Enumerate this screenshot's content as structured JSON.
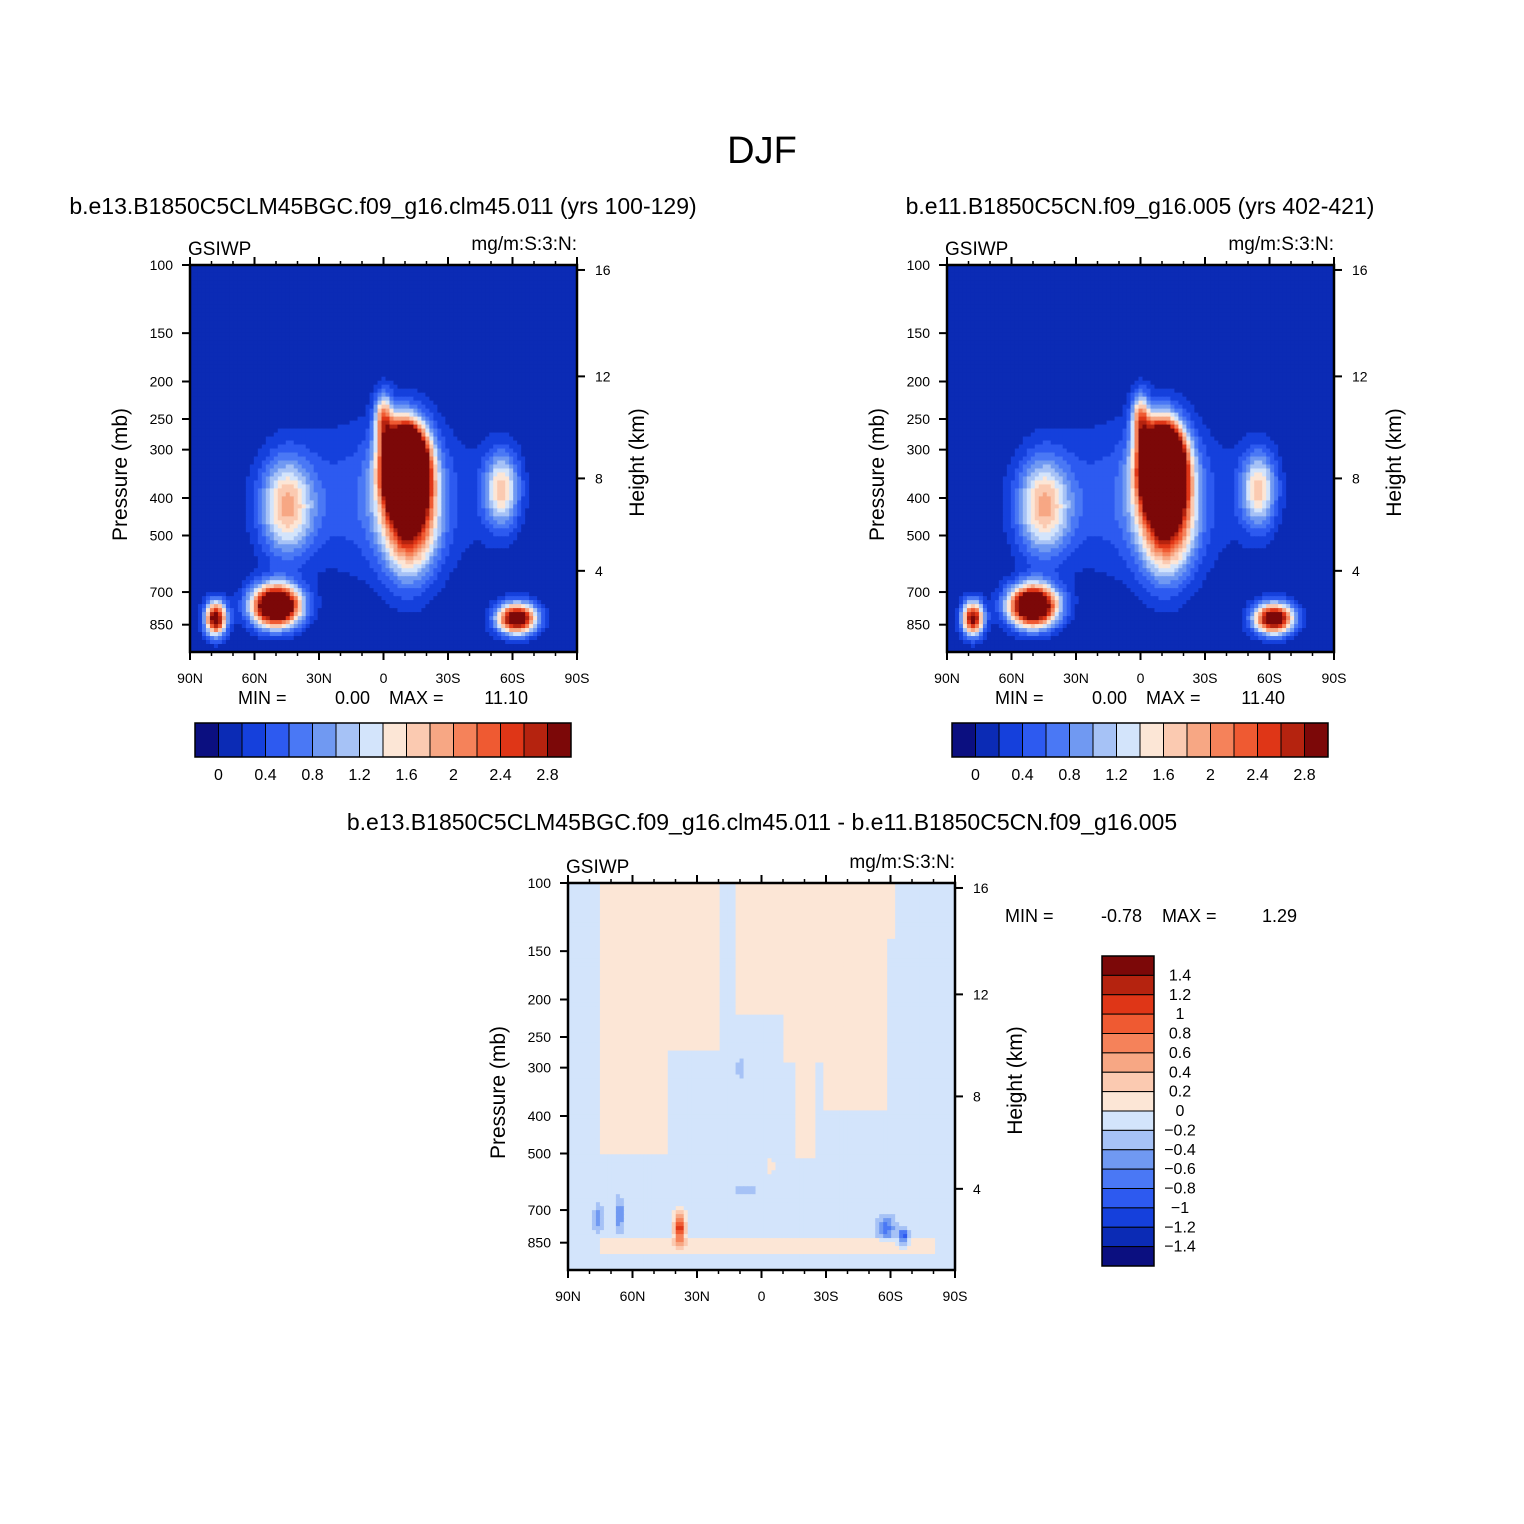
{
  "figure": {
    "title": "DJF",
    "colors": {
      "top_palette": [
        "#0b0f80",
        "#0b2bb5",
        "#1540dc",
        "#2d5af0",
        "#4a78f5",
        "#7099f2",
        "#a6c2f6",
        "#d3e4fb",
        "#fce6d6",
        "#fbcab1",
        "#f7a784",
        "#f5825a",
        "#ef5a32",
        "#df3617",
        "#b5230f",
        "#7c0808"
      ],
      "diff_palette": [
        "#0b0f80",
        "#0b2bb5",
        "#1540dc",
        "#2d5af0",
        "#4a78f5",
        "#7099f2",
        "#a6c2f6",
        "#d3e4fb",
        "#fce6d6",
        "#fbcab1",
        "#f7a784",
        "#f5825a",
        "#ef5a32",
        "#df3617",
        "#b5230f",
        "#7c0808"
      ]
    }
  },
  "chart_data": [
    {
      "type": "heatmap",
      "name": "panel-1",
      "title": "b.e13.B1850C5CLM45BGC.f09_g16.clm45.011 (yrs 100-129)",
      "left_label": "GSIWP",
      "right_label": "mg/m:S:3:N:",
      "ylabel": "Pressure (mb)",
      "ylabel_right": "Height (km)",
      "x_ticks": [
        "90N",
        "60N",
        "30N",
        "0",
        "30S",
        "60S",
        "90S"
      ],
      "y_ticks": [
        "100",
        "150",
        "200",
        "250",
        "300",
        "400",
        "500",
        "700",
        "850"
      ],
      "y_ticks_right": [
        "16",
        "12",
        "8",
        "4"
      ],
      "min_text": "MIN =",
      "min_value": "0.00",
      "max_text": "MAX =",
      "max_value": "11.10",
      "colorbar_labels": [
        "0",
        "0.4",
        "0.8",
        "1.2",
        "1.6",
        "2",
        "2.4",
        "2.8"
      ],
      "features": [
        {
          "lat": -10,
          "p": 330,
          "amp": 7.5,
          "wlat": 9,
          "wlogp": 0.22
        },
        {
          "lat": -12,
          "p": 430,
          "amp": 3.0,
          "wlat": 12,
          "wlogp": 0.35
        },
        {
          "lat": 0,
          "p": 250,
          "amp": 1.8,
          "wlat": 4,
          "wlogp": 0.15
        },
        {
          "lat": 45,
          "p": 420,
          "amp": 1.7,
          "wlat": 12,
          "wlogp": 0.28
        },
        {
          "lat": 50,
          "p": 760,
          "amp": 4.5,
          "wlat": 11,
          "wlogp": 0.12
        },
        {
          "lat": 78,
          "p": 820,
          "amp": 3.2,
          "wlat": 5,
          "wlogp": 0.1
        },
        {
          "lat": -55,
          "p": 380,
          "amp": 1.6,
          "wlat": 8,
          "wlogp": 0.22
        },
        {
          "lat": -62,
          "p": 820,
          "amp": 3.5,
          "wlat": 9,
          "wlogp": 0.09
        },
        {
          "lat": 0,
          "p": 400,
          "amp": 0.6,
          "wlat": 45,
          "wlogp": 0.45
        }
      ]
    },
    {
      "type": "heatmap",
      "name": "panel-2",
      "title": "b.e11.B1850C5CN.f09_g16.005 (yrs 402-421)",
      "left_label": "GSIWP",
      "right_label": "mg/m:S:3:N:",
      "ylabel": "Pressure (mb)",
      "ylabel_right": "Height (km)",
      "x_ticks": [
        "90N",
        "60N",
        "30N",
        "0",
        "30S",
        "60S",
        "90S"
      ],
      "y_ticks": [
        "100",
        "150",
        "200",
        "250",
        "300",
        "400",
        "500",
        "700",
        "850"
      ],
      "y_ticks_right": [
        "16",
        "12",
        "8",
        "4"
      ],
      "min_text": "MIN =",
      "min_value": "0.00",
      "max_text": "MAX =",
      "max_value": "11.40",
      "colorbar_labels": [
        "0",
        "0.4",
        "0.8",
        "1.2",
        "1.6",
        "2",
        "2.4",
        "2.8"
      ],
      "features": [
        {
          "lat": -10,
          "p": 330,
          "amp": 7.8,
          "wlat": 9,
          "wlogp": 0.22
        },
        {
          "lat": -12,
          "p": 430,
          "amp": 3.0,
          "wlat": 12,
          "wlogp": 0.35
        },
        {
          "lat": 0,
          "p": 250,
          "amp": 1.8,
          "wlat": 4,
          "wlogp": 0.15
        },
        {
          "lat": 45,
          "p": 420,
          "amp": 1.7,
          "wlat": 12,
          "wlogp": 0.28
        },
        {
          "lat": 50,
          "p": 760,
          "amp": 4.4,
          "wlat": 11,
          "wlogp": 0.12
        },
        {
          "lat": 78,
          "p": 820,
          "amp": 3.0,
          "wlat": 5,
          "wlogp": 0.1
        },
        {
          "lat": -55,
          "p": 380,
          "amp": 1.6,
          "wlat": 8,
          "wlogp": 0.22
        },
        {
          "lat": -62,
          "p": 820,
          "amp": 3.5,
          "wlat": 9,
          "wlogp": 0.09
        },
        {
          "lat": 0,
          "p": 400,
          "amp": 0.6,
          "wlat": 45,
          "wlogp": 0.45
        }
      ]
    },
    {
      "type": "heatmap",
      "name": "panel-diff",
      "title": "b.e13.B1850C5CLM45BGC.f09_g16.clm45.011 - b.e11.B1850C5CN.f09_g16.005",
      "left_label": "GSIWP",
      "right_label": "mg/m:S:3:N:",
      "ylabel": "Pressure (mb)",
      "ylabel_right": "Height (km)",
      "x_ticks": [
        "90N",
        "60N",
        "30N",
        "0",
        "30S",
        "60S",
        "90S"
      ],
      "y_ticks": [
        "100",
        "150",
        "200",
        "250",
        "300",
        "400",
        "500",
        "700",
        "850"
      ],
      "y_ticks_right": [
        "16",
        "12",
        "8",
        "4"
      ],
      "min_text": "MIN =",
      "min_value": "-0.78",
      "max_text": "MAX =",
      "max_value": "1.29",
      "colorbar_labels": [
        "1.4",
        "1.2",
        "1",
        "0.8",
        "0.6",
        "0.4",
        "0.2",
        "0",
        "-0.2",
        "-0.4",
        "-0.6",
        "-0.8",
        "-1",
        "-1.2",
        "-1.4"
      ],
      "features": [
        {
          "lat": 38,
          "p": 780,
          "amp": 1.29,
          "wlat": 2.5,
          "wlogp": 0.09
        },
        {
          "lat": 76,
          "p": 740,
          "amp": -0.45,
          "wlat": 2,
          "wlogp": 0.08
        },
        {
          "lat": 66,
          "p": 720,
          "amp": -0.55,
          "wlat": 2,
          "wlogp": 0.09
        },
        {
          "lat": -58,
          "p": 780,
          "amp": -0.6,
          "wlat": 4,
          "wlogp": 0.07
        },
        {
          "lat": -66,
          "p": 820,
          "amp": -0.78,
          "wlat": 2.5,
          "wlogp": 0.05
        },
        {
          "lat": 7,
          "p": 620,
          "amp": -0.22,
          "wlat": 6,
          "wlogp": 0.03
        },
        {
          "lat": -4,
          "p": 540,
          "amp": 0.25,
          "wlat": 2,
          "wlogp": 0.04
        },
        {
          "lat": 10,
          "p": 300,
          "amp": -0.22,
          "wlat": 1.5,
          "wlogp": 0.08
        }
      ],
      "positive_regions": [
        {
          "lat_from": 75,
          "lat_to": 43,
          "p_from": 100,
          "p_to": 500
        },
        {
          "lat_from": 43,
          "lat_to": 20,
          "p_from": 100,
          "p_to": 270
        },
        {
          "lat_from": 12,
          "lat_to": -10,
          "p_from": 100,
          "p_to": 220
        },
        {
          "lat_from": -10,
          "lat_to": -28,
          "p_from": 100,
          "p_to": 290
        },
        {
          "lat_from": -15,
          "lat_to": -25,
          "p_from": 290,
          "p_to": 510
        },
        {
          "lat_from": -28,
          "lat_to": -58,
          "p_from": 100,
          "p_to": 390
        },
        {
          "lat_from": -58,
          "lat_to": -62,
          "p_from": 100,
          "p_to": 140
        },
        {
          "lat_from": 75,
          "lat_to": -80,
          "p_from": 830,
          "p_to": 900
        }
      ]
    }
  ]
}
